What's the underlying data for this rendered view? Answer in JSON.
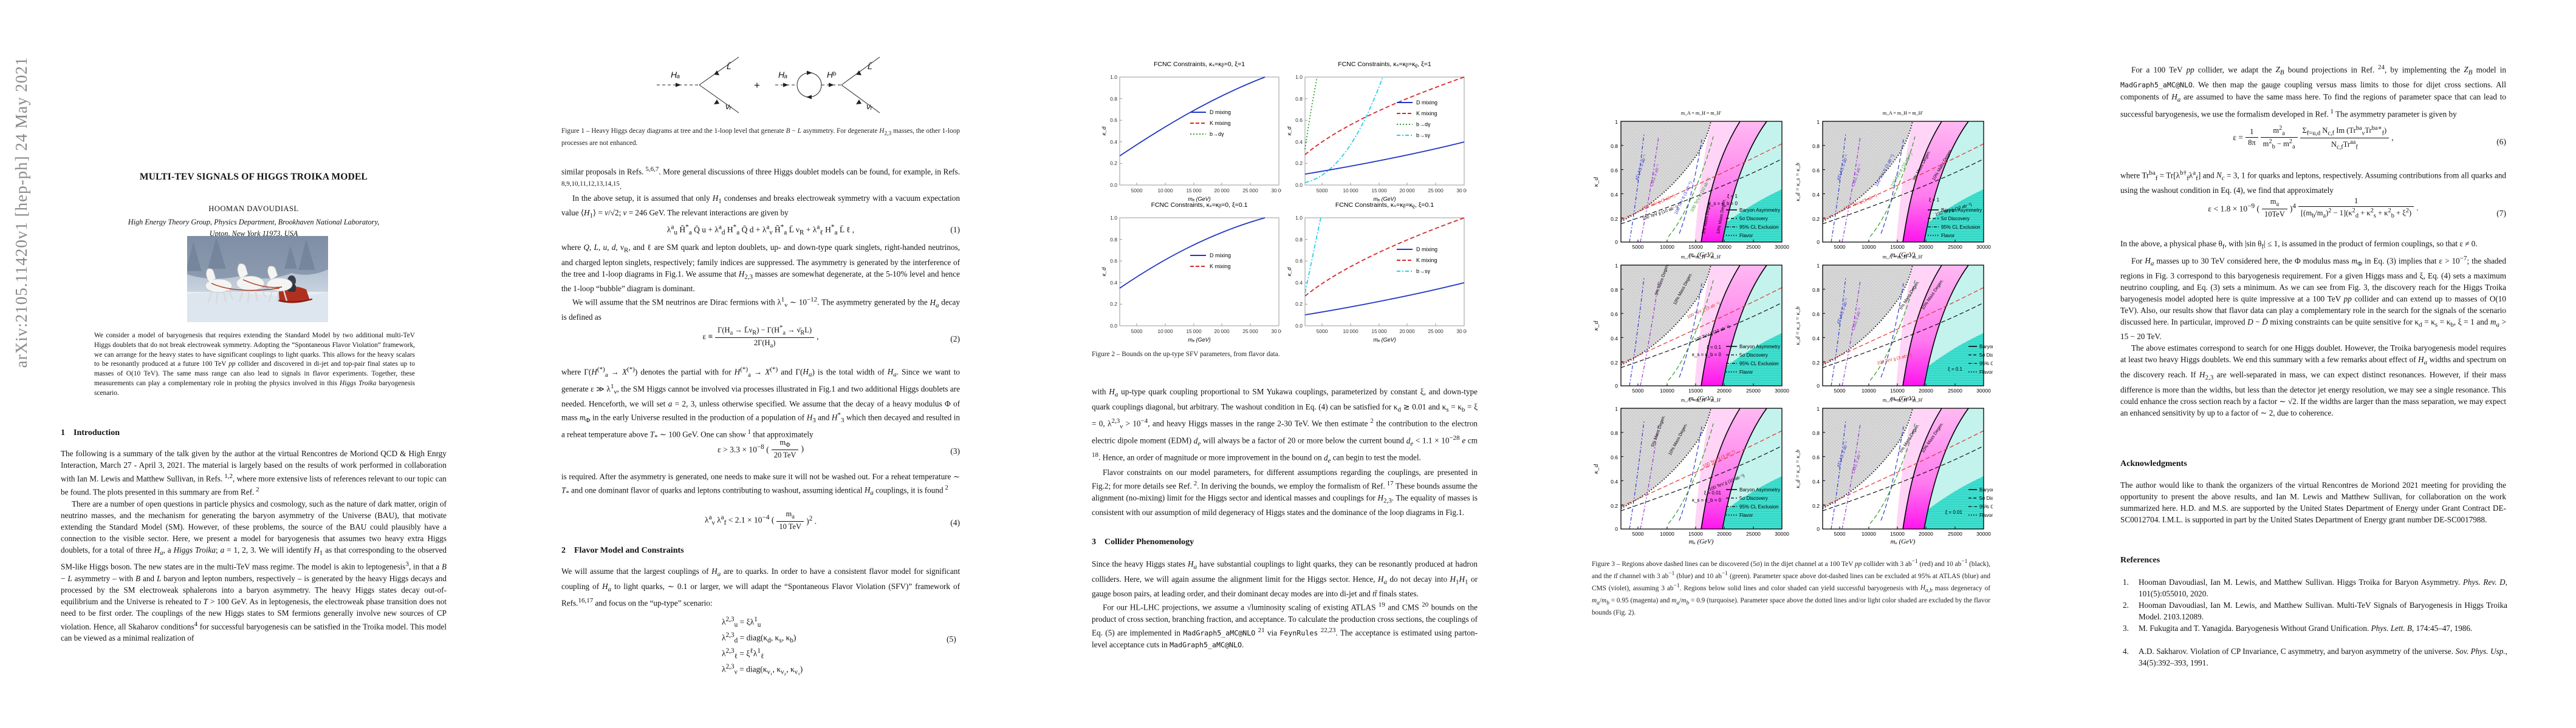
{
  "arxiv_stamp": "arXiv:2105.11420v1  [hep-ph]  24 May 2021",
  "page1": {
    "title": "MULTI-TEV SIGNALS OF HIGGS TROIKA MODEL",
    "author": "HOOMAN DAVOUDIASL",
    "affil1": "High Energy Theory Group, Physics Department, Brookhaven National Laboratory,",
    "affil2": "Upton, New York 11973, USA",
    "abstract": "We consider a model of baryogenesis that requires extending the Standard Model by two additional multi-TeV Higgs doublets that do not break electroweak symmetry. Adopting the “Spontaneous Flavor Violation” framework, we can arrange for the heavy states to have significant couplings to light quarks. This allows for the heavy scalars to be resonantly produced at a future 100 TeV <i>pp</i> collider and discovered in di-jet and top-pair final states up to masses of O(10 TeV). The same mass range can also lead to signals in flavor experiments. Together, these measurements can play a complementary role in probing the physics involved in this <i>Higgs Troika</i> baryogenesis scenario.",
    "sec1": "1 Introduction",
    "intro_p1": "The following is a summary of the talk given by the author at the virtual Rencontres de Moriond QCD &amp; High Enrgy Interaction, March 27 - April 3, 2021.  The material is largely based on the results of work performed in collaboration with Ian M. Lewis and Matthew Sullivan, in Refs.<sup> 1,2</sup>, where more extensive lists of references relevant to our topic can be found.  The plots presented in this summary are from Ref.<sup> 2</sup>",
    "intro_p2": "There are a number of open questions in particle physics and cosmology, such as the nature of dark matter, origin of neutrino masses, and the mechanism for generating the baryon asymmetry of the Universe (BAU), that motivate extending the Standard Model (SM). However, of these problems, the source of the BAU could plausibly have a connection to the visible sector. Here, we present a model for baryogenesis that assumes two heavy extra Higgs doublets, for a total of three <i>H<sub>a</sub></i>, a <i>Higgs Troika</i>; <i>a</i> = 1, 2, 3.  We will identify <i>H</i><sub>1</sub> as that corresponding to the observed SM-like Higgs boson. The new states are in the multi-TeV mass regime. The model is akin to leptogenesis<sup>3</sup>, in that a <i>B</i> − <i>L</i> asymmetry – with <i>B</i> and <i>L</i> baryon and lepton numbers, respectively – is generated by the heavy Higgs decays and processed by the SM electroweak sphalerons into a baryon asymmetry.  The heavy Higgs states decay out-of-equilibrium and the Universe is reheated to <i>T</i> &gt; 100 GeV. As in leptogenesis, the electroweak phase transition does not need to be first order.  The couplings of the new Higgs states to SM fermions generally involve new sources of CP violation. Hence, all Skaharov conditions<sup>4</sup> for successful baryogenesis can be satisfied in the Troika model.  This model can be viewed as a minimal realization of"
  },
  "page2": {
    "fig1": {
      "labels": {
        "ha": "Hₐ",
        "hb": "Hᵇ",
        "lbar": "L̄",
        "nur": "νᵣ",
        "plus": "+"
      },
      "caption": "Figure 1 – Heavy Higgs decay diagrams at tree and the 1-loop level that generate <i>B</i> − <i>L</i> asymmetry.  For degenerate <i>H</i><sub>2,3</sub> masses, the other 1-loop processes are not enhanced."
    },
    "p1": "similar proposals in Refs.<sup> 5,6,7</sup>.  More general discussions of three Higgs doublet models can be found, for example, in Refs.<sup> 8,9,10,11,12,13,14,15</sup>.",
    "p2": "In the above setup, it is assumed that only <i>H</i><sub>1</sub> condenses and breaks electroweak symmetry with a vacuum expectation value ⟨<i>H</i><sub>1</sub>⟩ = <i>v</i>/√2; <i>v</i> = 246 GeV.  The relevant interactions are given by",
    "eq1": "λ<sup>a</sup><sub>u</sub> H̃<sup>*</sup><sub>a</sub> Q̄ u + λ<sup>a</sup><sub>d</sub> H<sup>*</sup><sub>a</sub> Q̄ d + λ<sup>a</sup><sub>ν</sub> H̃<sup>*</sup><sub>a</sub> L̄ ν<sub>R</sub> + λ<sup>a</sup><sub>ℓ</sub> H<sup>*</sup><sub>a</sub> L̄ ℓ ,",
    "eq1no": "(1)",
    "p3": "where <i>Q</i>, <i>L</i>, <i>u</i>, <i>d</i>, ν<sub>R</sub>, and ℓ are SM quark and lepton doublets, up- and down-type quark singlets, right-handed neutrinos, and charged lepton singlets, respectively; family indices are suppressed. The asymmetry is generated by the interference of the tree and 1-loop diagrams in Fig.1.  We assume that <i>H</i><sub>2,3</sub> masses are somewhat degenerate, at the 5-10% level and hence the 1-loop “bubble” diagram is dominant.",
    "p4": "We will assume that the SM neutrinos are Dirac fermions with λ<sup>1</sup><sub>ν</sub> ∼ 10<sup>−12</sup>.  The asymmetry generated by the <i>H<sub>a</sub></i> decay is defined as",
    "eq2n": "Γ(H<sub>a</sub> → L̄ν<sub>R</sub>) − Γ(H<sup>*</sup><sub>a</sub> → ν̄<sub>R</sub>L)",
    "eq2d": "2Γ(H<sub>a</sub>)",
    "eq2pre": "ε ≡",
    "eq2post": ",",
    "eq2no": "(2)",
    "p5": "where Γ(<i>H</i><sup>(*)</sup><sub>a</sub> → <i>X</i><sup>(*)</sup>) denotes the partial with for <i>H</i><sup>(*)</sup><sub>a</sub> → <i>X</i><sup>(*)</sup> and Γ(<i>H<sub>a</sub></i>) is the total width of <i>H<sub>a</sub></i>.  Since we want to generate ε ≫ λ<sup>1</sup><sub>ν</sub>, the SM Higgs cannot be involved via processes illustrated in Fig.1 and two additional Higgs doublets are needed.  Henceforth, we will set <i>a</i> = 2, 3, unless otherwise specified.  We assume that the decay of a heavy modulus Φ of mass <i>m</i><sub>Φ</sub> in the early Universe resulted in the production of a population of <i>H</i><sub>3</sub> and <i>H</i><sup>*</sup><sub>3</sub> which then decayed and resulted in a reheat temperature above <i>T</i><sub>*</sub> ∼ 100 GeV.  One can show<sup> 1</sup> that approximately",
    "eq3pre": "ε &gt; 3.3 × 10<sup>−8</sup> (",
    "eq3n": "m<sub>Φ</sub>",
    "eq3d": "20 TeV",
    "eq3post": ")",
    "eq3no": "(3)",
    "p6": "is required.  After the asymmetry is generated, one needs to make sure it will not be washed out.  For a reheat temperature ∼ <i>T</i><sub>*</sub> and one dominant flavor of quarks and leptons contributing to washout, assuming identical <i>H<sub>a</sub></i> couplings, it is found<sup> 2</sup>",
    "eq4pre": "λ<sup>a</sup><sub>ν</sub> λ<sup>a</sup><sub>f</sub> &lt; 2.1 × 10<sup>−4</sup> (",
    "eq4n": "m<sub>a</sub>",
    "eq4d": "10 TeV",
    "eq4post": ")<sup>2</sup> .",
    "eq4no": "(4)",
    "sec2": "2 Flavor Model and Constraints",
    "p7": "We will assume that the largest couplings of <i>H<sub>a</sub></i> are to quarks.  In order to have a consistent flavor model for significant coupling of <i>H<sub>a</sub></i> to light quarks, ∼ 0.1 or larger, we will adapt the “Spontaneous Flavor Violation (SFV)” framework of Refs.<sup>16,17</sup> and focus on the “up-type” scenario:",
    "eq5rows": {
      "r1": "λ<sup>2,3</sup><sub>u</sub> = ξλ<sup>1</sup><sub>u</sub>",
      "r2": "λ<sup>2,3</sup><sub>d</sub> = diag(κ<sub>d</sub>, κ<sub>s</sub>, κ<sub>b</sub>)",
      "r3": "λ<sup>2,3</sup><sub>ℓ</sub> = ξ<sup>ℓ</sup>λ<sup>1</sup><sub>ℓ</sub>",
      "r4": "λ<sup>2,3</sup><sub>ν</sub> = diag(κ<sub>ν₁</sub>, κ<sub>ν₂</sub>, κ<sub>ν₃</sub>)"
    },
    "eq5no": "(5)"
  },
  "page3": {
    "fig2": {
      "xlabel": "mₐ (GeV)",
      "ylabel": "κ_d",
      "xticks": [
        "5000",
        "10 000",
        "15 000",
        "20 000",
        "25 000",
        "30 000"
      ],
      "yticks": [
        "0.0",
        "0.2",
        "0.4",
        "0.6",
        "0.8",
        "1.0"
      ],
      "plots": [
        {
          "title": "FCNC Constraints, κₛ=κᵦ=0, ξ=1",
          "legend": [
            "D mixing",
            "K mixing",
            "b→dγ"
          ]
        },
        {
          "title": "FCNC Constraints, κₛ=κᵦ=κᵨ, ξ=1",
          "legend": [
            "D mixing",
            "K mixing",
            "b→dγ",
            "b→sγ"
          ]
        },
        {
          "title": "FCNC Constraints, κₛ=κᵦ=0, ξ=0.1",
          "legend": [
            "D mixing",
            "K mixing"
          ]
        },
        {
          "title": "FCNC Constraints, κₛ=κᵦ=κᵨ, ξ=0.1",
          "legend": [
            "D mixing",
            "K mixing",
            "b→sγ"
          ]
        }
      ],
      "caption": "Figure 2 – Bounds on the up-type SFV parameters, from flavor data.",
      "colors": {
        "d_mixing": "#1f35c4",
        "k_mixing": "#d62728",
        "b_dgamma": "#2ca02c",
        "b_sgamma": "#29d0e5"
      }
    },
    "p1": "with <i>H<sub>a</sub></i> up-type quark coupling proportional to SM Yukawa couplings, parameterized by constant ξ, and down-type quark couplings diagonal, but arbitrary.  The washout condition in Eq. (4) can be satisfied for κ<sub>d</sub> ≳ 0.01 and κ<sub>s</sub> = κ<sub>b</sub> = ξ = 0, λ<sup>2,3</sup><sub>ν</sub> &gt; 10<sup>−4</sup>, and heavy Higgs masses in the range 2-30 TeV.  We then estimate<sup> 2</sup> the contribution to the electron electric dipole moment (EDM) <i>d<sub>e</sub></i> will always be a factor of 20 or more below the current bound <i>d<sub>e</sub></i> &lt; 1.1 × 10<sup>−28</sup> <i>e</i> cm <sup>18</sup>.  Hence, an order of magnitude or more improvement in the bound on <i>d<sub>e</sub></i> can begin to test the model.",
    "p2": "Flavor constraints on our model parameters, for different assumptions regarding the couplings, are presented in Fig.2; for more details see Ref.<sup> 2</sup>.  In deriving the bounds, we employ the formalism of Ref.<sup> 17</sup>  These bounds assume the alignment (no-mixing) limit for the Higgs sector and identical masses and couplings for <i>H</i><sub>2,3</sub>.  The equality of masses is consistent with our assumption of mild degeneracy of Higgs states and the dominance of the loop diagrams in Fig.1.",
    "sec3": "3 Collider Phenomenology",
    "p3": "Since the heavy Higgs states <i>H<sub>a</sub></i> have substantial couplings to light quarks, they can be resonantly produced at hadron colliders.  Here, we will again assume the alignment limit for the Higgs sector. Hence, <i>H<sub>a</sub></i> do not decay into <i>H</i><sub>1</sub><i>H</i><sub>1</sub> or gauge boson pairs, at leading order, and their dominant decay modes are into di-jet and <i>tt̄</i> finals states.",
    "p4": "For our HL-LHC projections, we assume a √luminosity scaling of existing ATLAS <sup>19</sup> and CMS <sup>20</sup> bounds on the product of cross section, branching fraction, and acceptance.  To calculate the production cross sections, the couplings of Eq. (5) are implemented in <span class=\"tt\">MadGraph5_aMC@NLO</span> <sup>21</sup> via <span class=\"tt\">FeynRules</span> <sup>22,23</sup>.  The acceptance is estimated using parton-level acceptance cuts in <span class=\"tt\">MadGraph5_aMC@NLO</span>."
  },
  "page4": {
    "fig3": {
      "plot_title": "mₐ = mₕ = mₕ′",
      "plot_title_display": "m_A = m_H = m_H′",
      "xlabel": "mₐ (GeV)",
      "xticks": [
        "5000",
        "10000",
        "15000",
        "20000",
        "25000",
        "30000"
      ],
      "yticks": [
        "0",
        "0.2",
        "0.4",
        "0.6",
        "0.8",
        "1"
      ],
      "ylabel_left": "κ_d",
      "ylabel_right": "κ_d = κ_s = κ_b",
      "legend": [
        "Baryon Asymmetry",
        "5σ Discovery",
        "95% CL Exclusion",
        "Flavor"
      ],
      "curve_labels": {
        "atlas": "ATLAS 3 ab⁻¹",
        "cms": "CMS 3 ab⁻¹",
        "jj3": "100 TeV jj (3 ab⁻¹)",
        "jj10": "100 TeV jj (10 ab⁻¹)",
        "tt3": "100 TeV tt (3 ab⁻¹)",
        "tt10": "100 TeV tt (10 ab⁻¹)",
        "deg5": "5% Mass Degen.",
        "deg10": "10% Mass Degen."
      },
      "corners": [
        {
          "a": "ξ = 1",
          "b": "κ_s = κ_b = 0"
        },
        {
          "a": "ξ = 1",
          "b": ""
        },
        {
          "a": "ξ = 0.1",
          "b": "κ_s = κ_b = 0"
        },
        {
          "a": "ξ = 0.1",
          "b": ""
        },
        {
          "a": "ξ = 0.01",
          "b": "κ_s = κ_b = 0"
        },
        {
          "a": "ξ = 0.01",
          "b": ""
        }
      ],
      "region_colors": {
        "excluded_gray": "#d9d9d9",
        "magenta_band": "#ff2bf0",
        "pink": "#ffc2f3",
        "turquoise": "#3fe0d0",
        "pale_turquoise": "#c4f2ec"
      },
      "caption": "Figure 3 – Regions above dashed lines can be discovered (5σ) in the dijet channel at a 100 TeV <i>pp</i> collider with 3 ab<sup>−1</sup> (red) and 10 ab<sup>−1</sup> (black), and the <i>tt̄</i> channel with 3 ab<sup>−1</sup> (blue) and 10 ab<sup>−1</sup> (green).  Parameter space above dot-dashed lines can be excluded at 95% at ATLAS (blue) and CMS (violet), assuming 3 ab<sup>−1</sup>.  Regions below solid lines and color shaded can yield successful baryogenesis with <i>H<sub>a,b</sub></i> mass degeneracy of <i>m<sub>a</sub></i>/<i>m<sub>b</sub></i> = 0.95 (magenta) and <i>m<sub>a</sub></i>/<i>m<sub>b</sub></i> = 0.9 (turquoise).  Parameter space above the dotted lines and/or light color shaded are excluded by the flavor bounds (Fig. 2)."
    }
  },
  "page5": {
    "p1": "For a 100 TeV <i>pp</i> collider, we adapt the <i>Z<sub>B</sub></i> bound projections in Ref.<sup> 24</sup>, by implementing the <i>Z<sub>B</sub></i> model in <span class=\"tt\">MadGraph5_aMC@NLO</span>.  We then map the gauge coupling versus mass limits to those for dijet cross sections.  All components of <i>H<sub>a</sub></i> are assumed to have the same mass here.  To find the regions of parameter space that can lead to successful baryogenesis, we use the formalism developed in Ref.<sup> 1</sup>  The asymmetry parameter is given by",
    "eq6pre": "ε =",
    "eq6f1n": "1",
    "eq6f1d": "8π",
    "eq6f2n": "m<sup>2</sup><sub>a</sub>",
    "eq6f2d": "m<sup>2</sup><sub>b</sub> − m<sup>2</sup><sub>a</sub>",
    "eq6f3n": "Σ<sub>f=u,d</sub> N<sub>c,f</sub> Im (Tr<sup>ba</sup><sub>ν</sub>Tr<sup>ba∗</sup><sub>f</sub>)",
    "eq6f3d": "N<sub>c,f</sub>Tr<sup>aa</sup><sub>f</sub>",
    "eq6post": ",",
    "eq6no": "(6)",
    "p2": "where Tr<sup>ba</sup><sub>f</sub> = Tr[λ<sup>b†</sup><sub>f</sub>λ<sup>a</sup><sub>f</sub>] and <i>N<sub>c</sub></i> = 3, 1 for quarks and leptons, respectively.  Assuming contributions from all quarks and using the washout condition in Eq. (4), we find that approximately",
    "eq7pre": "ε &lt; 1.8 × 10<sup>−9</sup> (",
    "eq7f1n": "m<sub>a</sub>",
    "eq7f1d": "10TeV",
    "eq7mid": ")<sup>4</sup>",
    "eq7f2n": "1",
    "eq7f2d": "[(m<sub>b</sub>/m<sub>a</sub>)<sup>2</sup> − 1](κ<sup>2</sup><sub>d</sub> + κ<sup>2</sup><sub>s</sub> + κ<sup>2</sup><sub>b</sub> + ξ<sup>2</sup>)",
    "eq7post": ".",
    "eq7no": "(7)",
    "p3": "In the above, a physical phase θ<sub>f</sub>, with |sin θ<sub>f</sub>| ≤ 1, is assumed in the product of fermion couplings, so that ε ≠ 0.",
    "p4": "For <i>H<sub>a</sub></i> masses up to 30 TeV considered here, the Φ modulus mass <i>m</i><sub>Φ</sub> in Eq. (3) implies that ε &gt; 10<sup>−7</sup>; the shaded regions in Fig. 3 correspond to this baryogenesis requirement. For a given Higgs mass and ξ, Eq. (4) sets a maximum neutrino coupling, and Eq. (3) sets a minimum.  As we can see from Fig. 3, the discovery reach for the Higgs Troika baryogenesis model adopted here is quite impressive at a 100 TeV <i>pp</i> collider and can extend up to masses of O(10 TeV).  Also, our results show that flavor data can play a complementary role in the search for the signals of the scenario discussed here.  In particular, improved <i>D</i> − <i>D̄</i> mixing constraints can be quite sensitive for κ<sub>d</sub> = κ<sub>s</sub> = κ<sub>b</sub>, ξ = 1 and <i>m<sub>a</sub></i> &gt; 15 − 20 TeV.",
    "p5": "The above estimates correspond to search for one Higgs doublet.  However, the Troika baryogenesis model requires at least two heavy Higgs doublets.  We end this summary with a few remarks about effect of <i>H<sub>a</sub></i> widths and spectrum on the discovery reach.  If <i>H</i><sub>2,3</sub> are well-separated in mass, we can expect distinct resonances.  However, if their mass difference is more than the widths, but less than the detector jet energy resolution, we may see a single resonance.  This could enhance the cross section reach by a factor ∼ √2.  If the widths are larger than the mass separation, we may expect an enhanced sensitivity by up to a factor of ∼ 2, due to coherence.",
    "ack_heading": "Acknowledgments",
    "ack": "The author would like to thank the organizers of the virtual Rencontres de Moriond 2021 meeting for providing the opportunity to present the above results, and Ian M. Lewis and Matthew Sullivan, for collaboration on the work summarized here.  H.D. and M.S. are supported by the United States Department of Energy under Grant Contract DE-SC0012704.  I.M.L. is supported in part by the United States Department of Energy grant number DE-SC0017988.",
    "refs_heading": "References",
    "refs": [
      {
        "num": "1.",
        "text": "Hooman Davoudiasl, Ian M. Lewis, and Matthew Sullivan.  Higgs Troika for Baryon Asymmetry.  <i>Phys. Rev. D</i>, 101(5):055010, 2020."
      },
      {
        "num": "2.",
        "text": "Hooman Davoudiasl, Ian M. Lewis, and Matthew Sullivan.  Multi-TeV Signals of Baryogenesis in Higgs Troika Model.  2103.12089."
      },
      {
        "num": "3.",
        "text": "M. Fukugita and T. Yanagida.  Baryogenesis Without Grand Unification.  <i>Phys. Lett. B</i>, 174:45–47, 1986."
      },
      {
        "num": "4.",
        "text": "A.D. Sakharov.  Violation of CP Invariance, C asymmetry, and baryon asymmetry of the universe.  <i>Sov. Phys. Usp.</i>, 34(5):392–393, 1991."
      }
    ]
  }
}
